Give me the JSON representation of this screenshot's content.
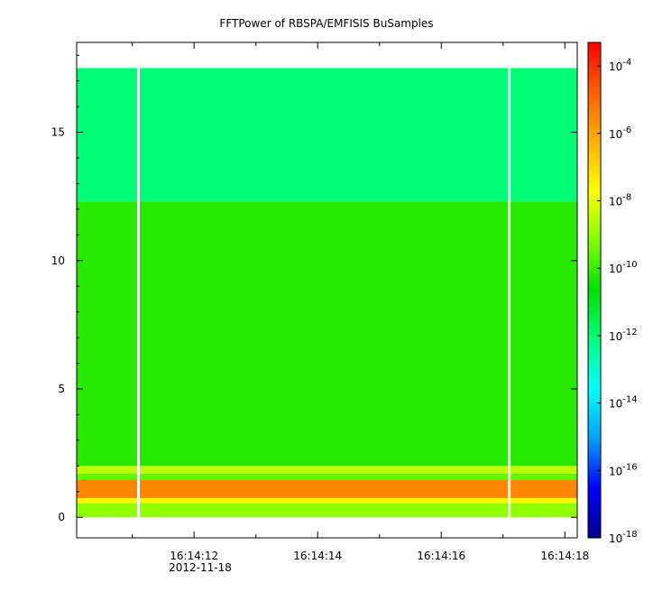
{
  "chart_data": {
    "type": "heatmap",
    "title": "FFTPower of RBSPA/EMFISIS  BuSamples",
    "xlabel": "",
    "ylabel": "",
    "x_tick_labels": [
      "16:14:12",
      "16:14:14",
      "16:14:16",
      "16:14:18"
    ],
    "x_tick_values_s": [
      12,
      14,
      16,
      18
    ],
    "x_date_label": "2012-11-18",
    "x_range_s": [
      10.1,
      18.2
    ],
    "ylim": [
      -0.8,
      18.5
    ],
    "y_ticks": [
      0,
      5,
      10,
      15
    ],
    "data_y_extent": [
      0,
      17.5
    ],
    "gap_times_s": [
      11.1,
      17.1
    ],
    "bands": [
      {
        "y0": 0.0,
        "y1": 0.55,
        "level_log10": -9.0
      },
      {
        "y0": 0.55,
        "y1": 0.75,
        "level_log10": -7.5
      },
      {
        "y0": 0.75,
        "y1": 1.45,
        "level_log10": -5.5
      },
      {
        "y0": 1.45,
        "y1": 1.7,
        "level_log10": -9.5
      },
      {
        "y0": 1.7,
        "y1": 2.0,
        "level_log10": -8.5
      },
      {
        "y0": 2.0,
        "y1": 12.3,
        "level_log10": -10.2
      },
      {
        "y0": 12.3,
        "y1": 17.5,
        "level_log10": -12.0
      }
    ],
    "colorbar": {
      "scale": "log",
      "range_log10": [
        -18,
        -3.3
      ],
      "tick_exponents": [
        -4,
        -6,
        -8,
        -10,
        -12,
        -14,
        -16,
        -18
      ],
      "tick_base": "10",
      "colors": [
        "#00008c",
        "#0000ff",
        "#00a0ff",
        "#00ffff",
        "#00ff80",
        "#00e000",
        "#80ff00",
        "#ffff00",
        "#ffb000",
        "#ff6000",
        "#ff0000"
      ]
    }
  }
}
